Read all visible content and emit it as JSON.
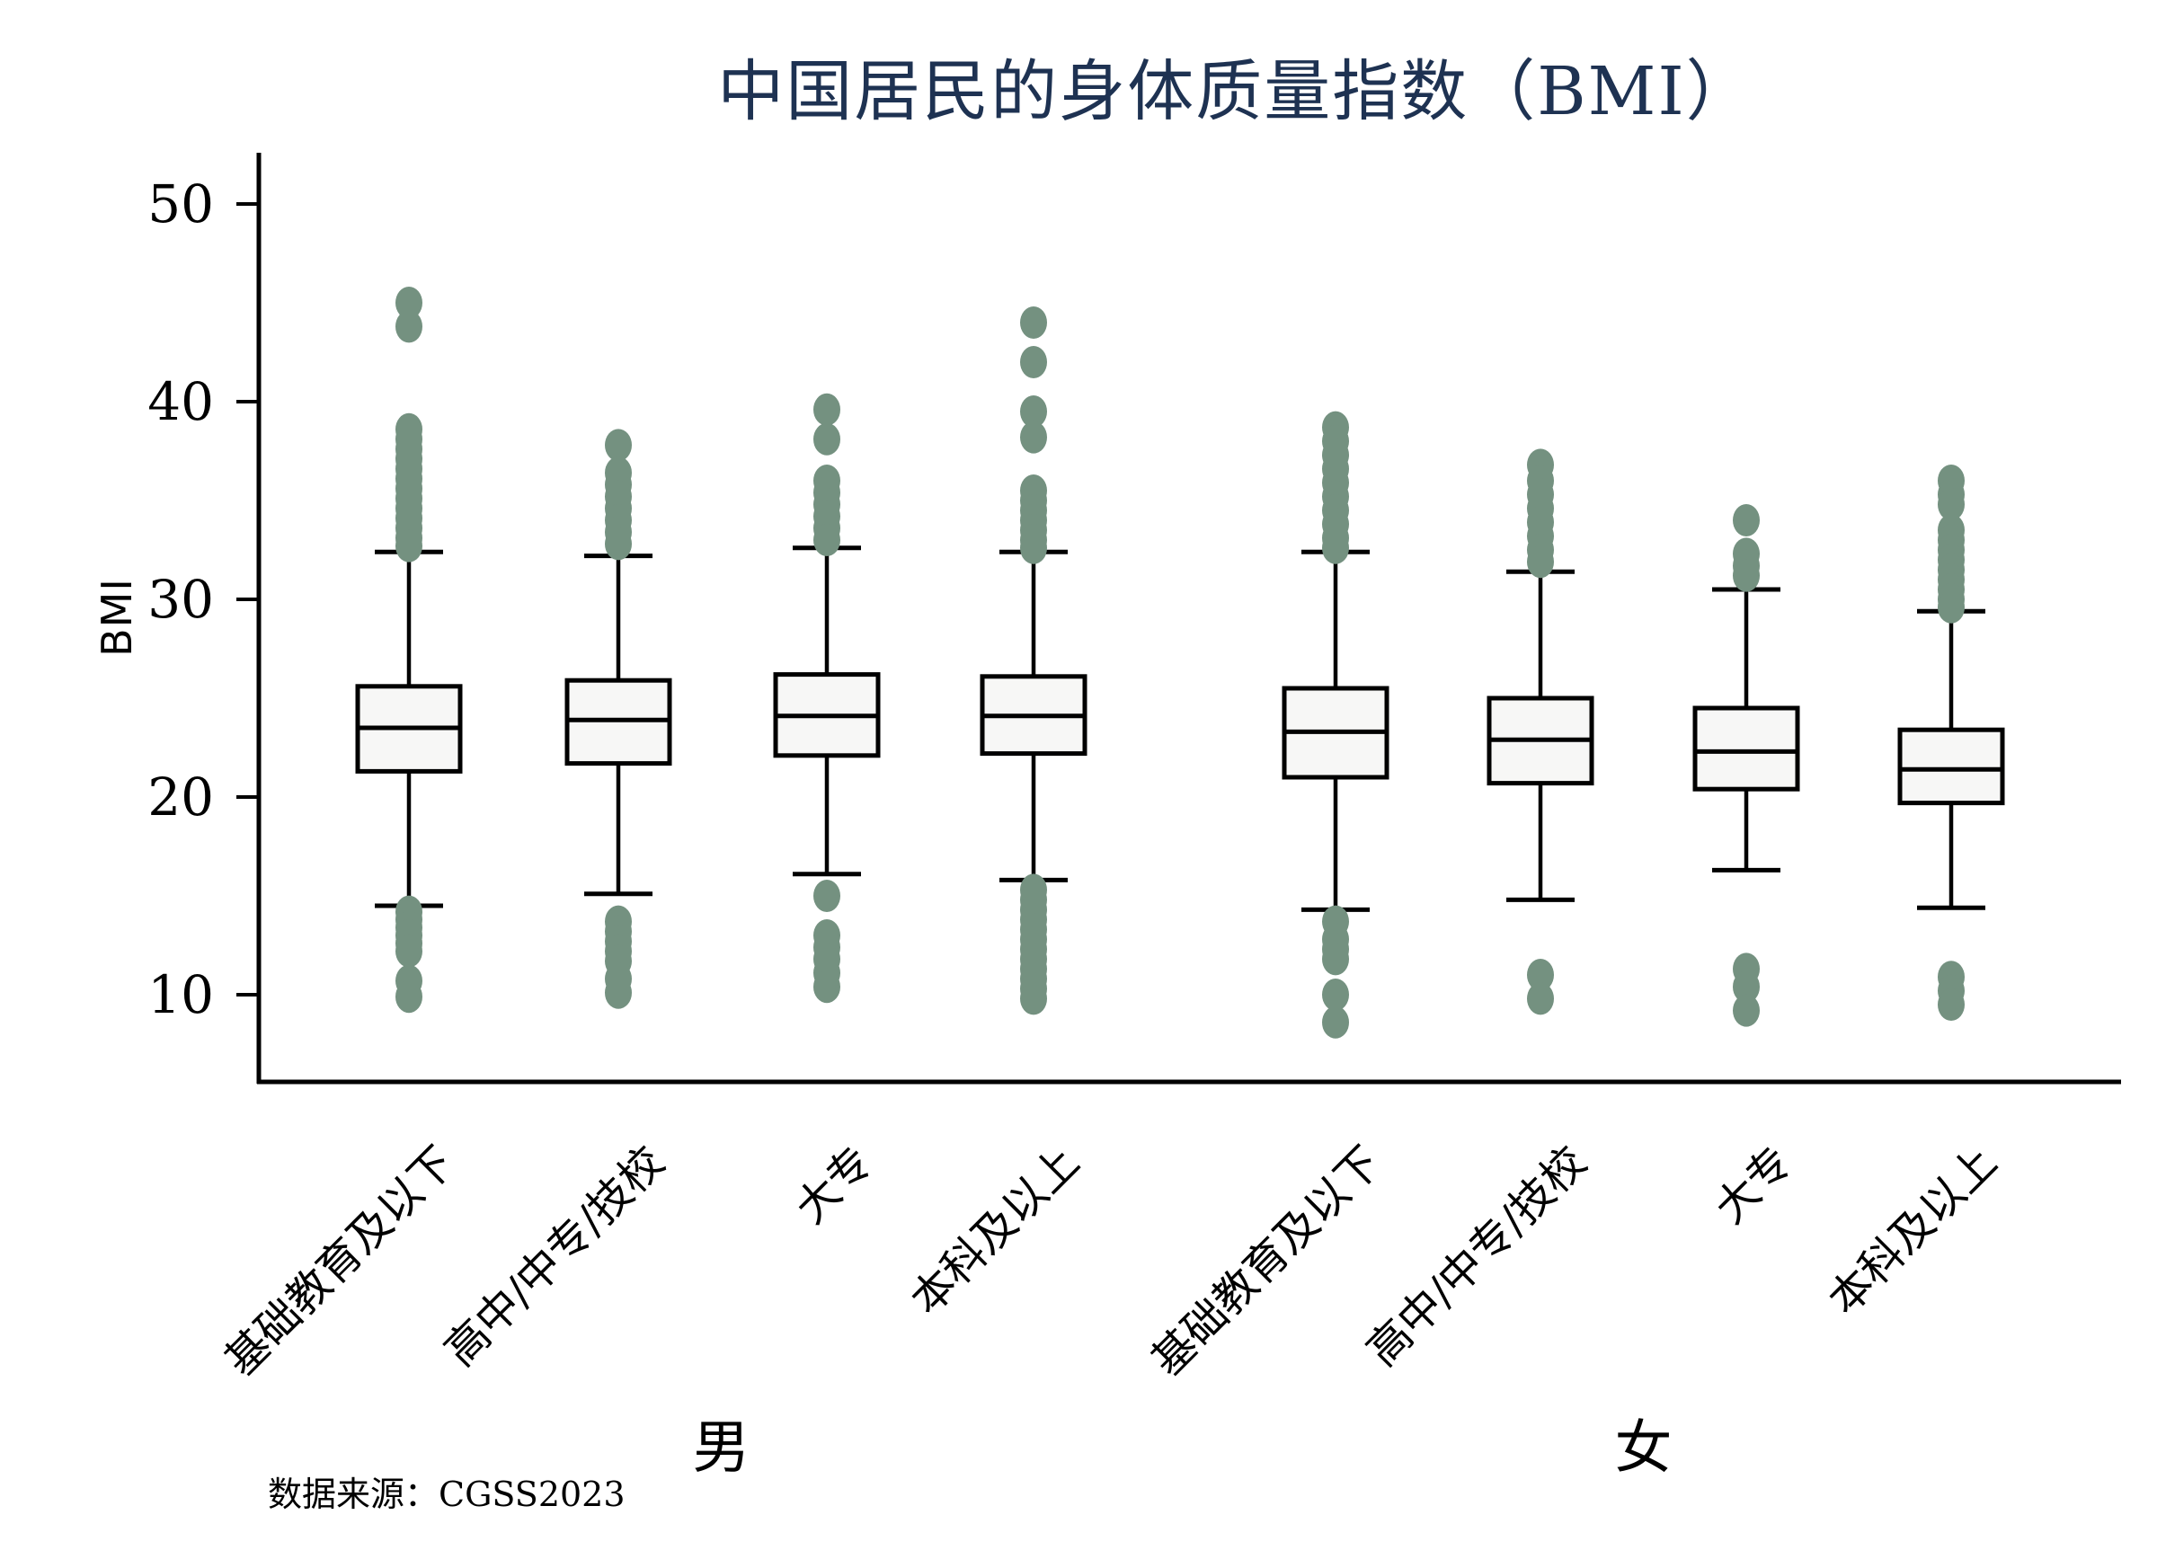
{
  "colors": {
    "title_text": "#1e3252",
    "axis_line": "#000000",
    "box_fill": "#f7f7f6",
    "box_stroke": "#000000",
    "outlier_dot": "#749180"
  },
  "chart_data": {
    "type": "boxplot",
    "title": "中国居民的身体质量指数（BMI）",
    "ylabel": "BMI",
    "yticks": [
      50,
      40,
      30,
      20,
      10
    ],
    "ylim": [
      5.5,
      52.5
    ],
    "grid": false,
    "legend": "none",
    "source_note": "数据来源：CGSS2023",
    "groups": [
      {
        "label": "男",
        "boxes": [
          {
            "category": "基础教育及以下",
            "whisker_low": 14.5,
            "q1": 21.3,
            "median": 23.5,
            "q3": 25.6,
            "whisker_high": 32.4,
            "outliers_high": [
              45.0,
              43.8,
              38.6,
              38.1,
              37.6,
              37.1,
              36.6,
              36.1,
              35.6,
              35.1,
              34.6,
              34.1,
              33.6,
              33.1,
              32.7
            ],
            "outliers_low": [
              14.2,
              13.8,
              13.4,
              13.0,
              12.6,
              12.2,
              10.7,
              9.9
            ]
          },
          {
            "category": "高中/中专/技校",
            "whisker_low": 15.1,
            "q1": 21.7,
            "median": 23.9,
            "q3": 25.9,
            "whisker_high": 32.2,
            "outliers_high": [
              37.8,
              36.4,
              35.8,
              35.2,
              34.6,
              34.0,
              33.4,
              32.8
            ],
            "outliers_low": [
              13.7,
              13.2,
              12.7,
              12.2,
              11.7,
              10.8,
              10.1
            ]
          },
          {
            "category": "大专",
            "whisker_low": 16.1,
            "q1": 22.1,
            "median": 24.1,
            "q3": 26.2,
            "whisker_high": 32.6,
            "outliers_high": [
              39.6,
              38.1,
              36.0,
              35.4,
              34.8,
              34.2,
              33.6,
              33.0
            ],
            "outliers_low": [
              15.0,
              13.0,
              12.4,
              11.8,
              11.1,
              10.4
            ]
          },
          {
            "category": "本科及以上",
            "whisker_low": 15.8,
            "q1": 22.2,
            "median": 24.1,
            "q3": 26.1,
            "whisker_high": 32.4,
            "outliers_high": [
              44.0,
              42.0,
              39.5,
              38.2,
              35.5,
              35.0,
              34.5,
              34.0,
              33.5,
              33.0,
              32.6
            ],
            "outliers_low": [
              15.3,
              14.8,
              14.3,
              13.8,
              13.3,
              12.8,
              12.3,
              11.8,
              11.3,
              10.8,
              10.3,
              9.8
            ]
          }
        ]
      },
      {
        "label": "女",
        "boxes": [
          {
            "category": "基础教育及以下",
            "whisker_low": 14.3,
            "q1": 21.0,
            "median": 23.3,
            "q3": 25.5,
            "whisker_high": 32.4,
            "outliers_high": [
              38.7,
              38.0,
              37.3,
              36.6,
              35.9,
              35.2,
              34.5,
              33.8,
              33.1,
              32.6
            ],
            "outliers_low": [
              13.7,
              12.8,
              12.3,
              11.8,
              10.0,
              8.6
            ]
          },
          {
            "category": "高中/中专/技校",
            "whisker_low": 14.8,
            "q1": 20.7,
            "median": 22.9,
            "q3": 25.0,
            "whisker_high": 31.4,
            "outliers_high": [
              36.8,
              36.0,
              35.3,
              34.6,
              33.9,
              33.2,
              32.5,
              31.9
            ],
            "outliers_low": [
              11.0,
              9.8
            ]
          },
          {
            "category": "大专",
            "whisker_low": 16.3,
            "q1": 20.4,
            "median": 22.3,
            "q3": 24.5,
            "whisker_high": 30.5,
            "outliers_high": [
              34.0,
              32.3,
              31.7,
              31.2
            ],
            "outliers_low": [
              11.3,
              10.4,
              9.2
            ]
          },
          {
            "category": "本科及以上",
            "whisker_low": 14.4,
            "q1": 19.7,
            "median": 21.4,
            "q3": 23.4,
            "whisker_high": 29.4,
            "outliers_high": [
              36.0,
              35.3,
              34.8,
              33.5,
              33.0,
              32.5,
              32.0,
              31.5,
              31.0,
              30.5,
              30.0,
              29.6
            ],
            "outliers_low": [
              10.9,
              10.2,
              9.5
            ]
          }
        ]
      }
    ]
  }
}
